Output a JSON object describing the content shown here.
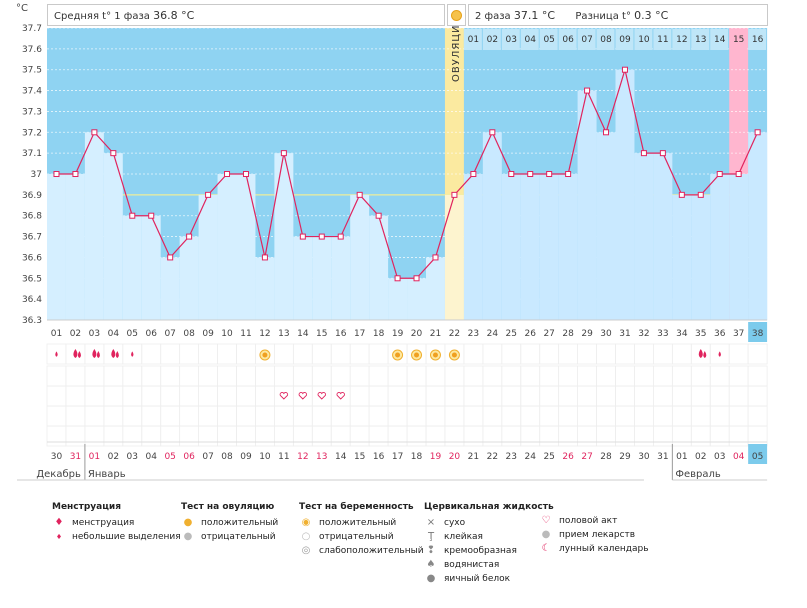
{
  "header": {
    "phase1_label": "Средняя t° 1 фаза",
    "phase1_value": "36.8 °С",
    "phase2_label": "2 фаза",
    "phase2_value": "37.1 °С",
    "diff_label": "Разница t°",
    "diff_value": "0.3 °С"
  },
  "ovulation_label": "ОВУЛЯЦИЯ",
  "chart_data": {
    "type": "line",
    "ylabel": "°С",
    "ylim": [
      36.3,
      37.7
    ],
    "yticks": [
      "37.7",
      "37.6",
      "37.5",
      "37.4",
      "37.3",
      "37.2",
      "37.1",
      "37",
      "36.9",
      "36.8",
      "36.7",
      "36.6",
      "36.5",
      "36.4",
      "36.3"
    ],
    "x": [
      "01",
      "02",
      "03",
      "04",
      "05",
      "06",
      "07",
      "08",
      "09",
      "10",
      "11",
      "12",
      "13",
      "14",
      "15",
      "16",
      "17",
      "18",
      "19",
      "20",
      "21",
      "22",
      "23",
      "24",
      "25",
      "26",
      "27",
      "28",
      "29",
      "30",
      "31",
      "32",
      "33",
      "34",
      "35",
      "36",
      "37",
      "38"
    ],
    "series": [
      {
        "values": [
          37.0,
          37.0,
          37.2,
          37.1,
          36.8,
          36.8,
          36.6,
          36.7,
          36.9,
          37.0,
          37.0,
          36.6,
          37.1,
          36.7,
          36.7,
          36.7,
          36.9,
          36.8,
          36.5,
          36.5,
          36.6,
          36.9,
          37.0,
          37.2,
          37.0,
          37.0,
          37.0,
          37.0,
          37.4,
          37.2,
          37.5,
          37.1,
          37.1,
          36.9,
          36.9,
          37.0,
          37.0,
          37.2
        ]
      }
    ],
    "coverline": 36.9,
    "ovulation_day": 22,
    "phase2_day_numbers": [
      "01",
      "02",
      "03",
      "04",
      "05",
      "06",
      "07",
      "08",
      "09",
      "10",
      "11",
      "12",
      "13",
      "14",
      "15",
      "16"
    ],
    "dates": [
      "30",
      "31",
      "01",
      "02",
      "03",
      "04",
      "05",
      "06",
      "07",
      "08",
      "09",
      "10",
      "11",
      "12",
      "13",
      "14",
      "15",
      "16",
      "17",
      "18",
      "19",
      "20",
      "21",
      "22",
      "23",
      "24",
      "25",
      "26",
      "27",
      "28",
      "29",
      "30",
      "31",
      "01",
      "02",
      "03",
      "04",
      "05"
    ],
    "red_date_indices": [
      1,
      2,
      6,
      7,
      13,
      14,
      20,
      21,
      27,
      28,
      36
    ],
    "months": [
      "Декабрь",
      "Январь",
      "Февраль"
    ],
    "colors": {
      "phase1": "#d5efff",
      "phase2": "#c9e9ff",
      "band": "#8fd3f2",
      "line": "#e0245e",
      "ovulation": "#fbeaa0",
      "coverline": "#eeee99",
      "highlight": "#ffb6cf",
      "current": "#7ccbec"
    },
    "markers": {
      "menstruation_heavy": [
        2,
        3,
        4
      ],
      "menstruation_light": [
        1,
        5,
        36
      ],
      "menstruation_heavy_late": [
        35
      ],
      "ovulation_positive": [
        12,
        19,
        20,
        21,
        22
      ],
      "intercourse": [
        13,
        14,
        15,
        16
      ]
    }
  },
  "legend": {
    "menstruation": {
      "title": "Менструация",
      "items": [
        "менструация",
        "небольшие выделения"
      ]
    },
    "ovulation_test": {
      "title": "Тест на овуляцию",
      "items": [
        "положительный",
        "отрицательный"
      ]
    },
    "pregnancy_test": {
      "title": "Тест на беременность",
      "items": [
        "положительный",
        "отрицательный",
        "слабоположительный"
      ]
    },
    "cervical": {
      "title": "Цервикальная жидкость",
      "items": [
        "сухо",
        "клейкая",
        "кремообразная",
        "водянистая",
        "яичный белок"
      ]
    },
    "other": {
      "items": [
        "половой акт",
        "прием лекарств",
        "лунный календарь"
      ]
    }
  }
}
